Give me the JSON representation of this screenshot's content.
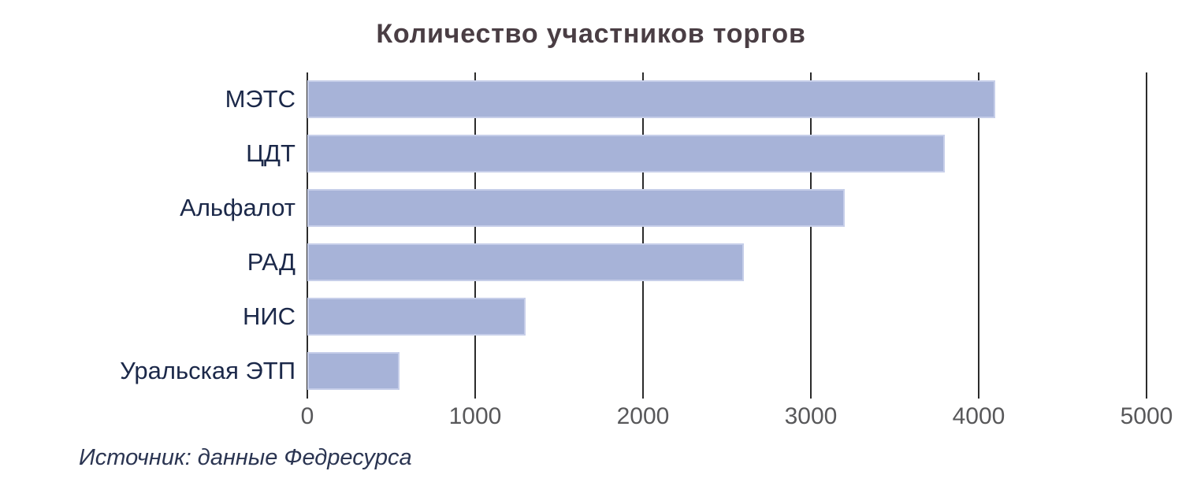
{
  "title": "Количество участников торгов",
  "source": "Источник: данные Федресурса",
  "colors": {
    "bar_fill": "#a7b3d8",
    "bar_border": "#c6cee9",
    "gridline": "#2b2b2b",
    "title_text": "#4a3e44",
    "category_text": "#1b2849",
    "tick_text": "#58585a",
    "source_text": "#2b3552",
    "background": "#ffffff"
  },
  "chart_data": {
    "type": "bar",
    "orientation": "horizontal",
    "title": "Количество участников торгов",
    "categories": [
      "МЭТС",
      "ЦДТ",
      "Альфалот",
      "РАД",
      "НИС",
      "Уральская ЭТП"
    ],
    "values": [
      4100,
      3800,
      3200,
      2600,
      1300,
      550
    ],
    "xlabel": "",
    "ylabel": "",
    "xlim": [
      0,
      5000
    ],
    "xticks": [
      0,
      1000,
      2000,
      3000,
      4000,
      5000
    ],
    "xtick_labels": [
      "0",
      "1000",
      "2000",
      "3000",
      "4000",
      "5000"
    ],
    "grid": "vertical",
    "legend": "none",
    "annotation": "Источник: данные Федресурса"
  }
}
